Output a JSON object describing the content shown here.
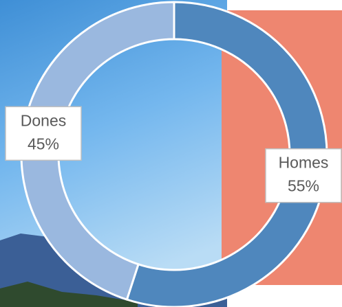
{
  "chart_data": {
    "type": "donut",
    "categories": [
      "Homes",
      "Dones"
    ],
    "values": [
      55,
      45
    ],
    "value_labels": [
      "55%",
      "45%"
    ],
    "colors": [
      "#4f87bd",
      "#9ab8df"
    ]
  }
}
